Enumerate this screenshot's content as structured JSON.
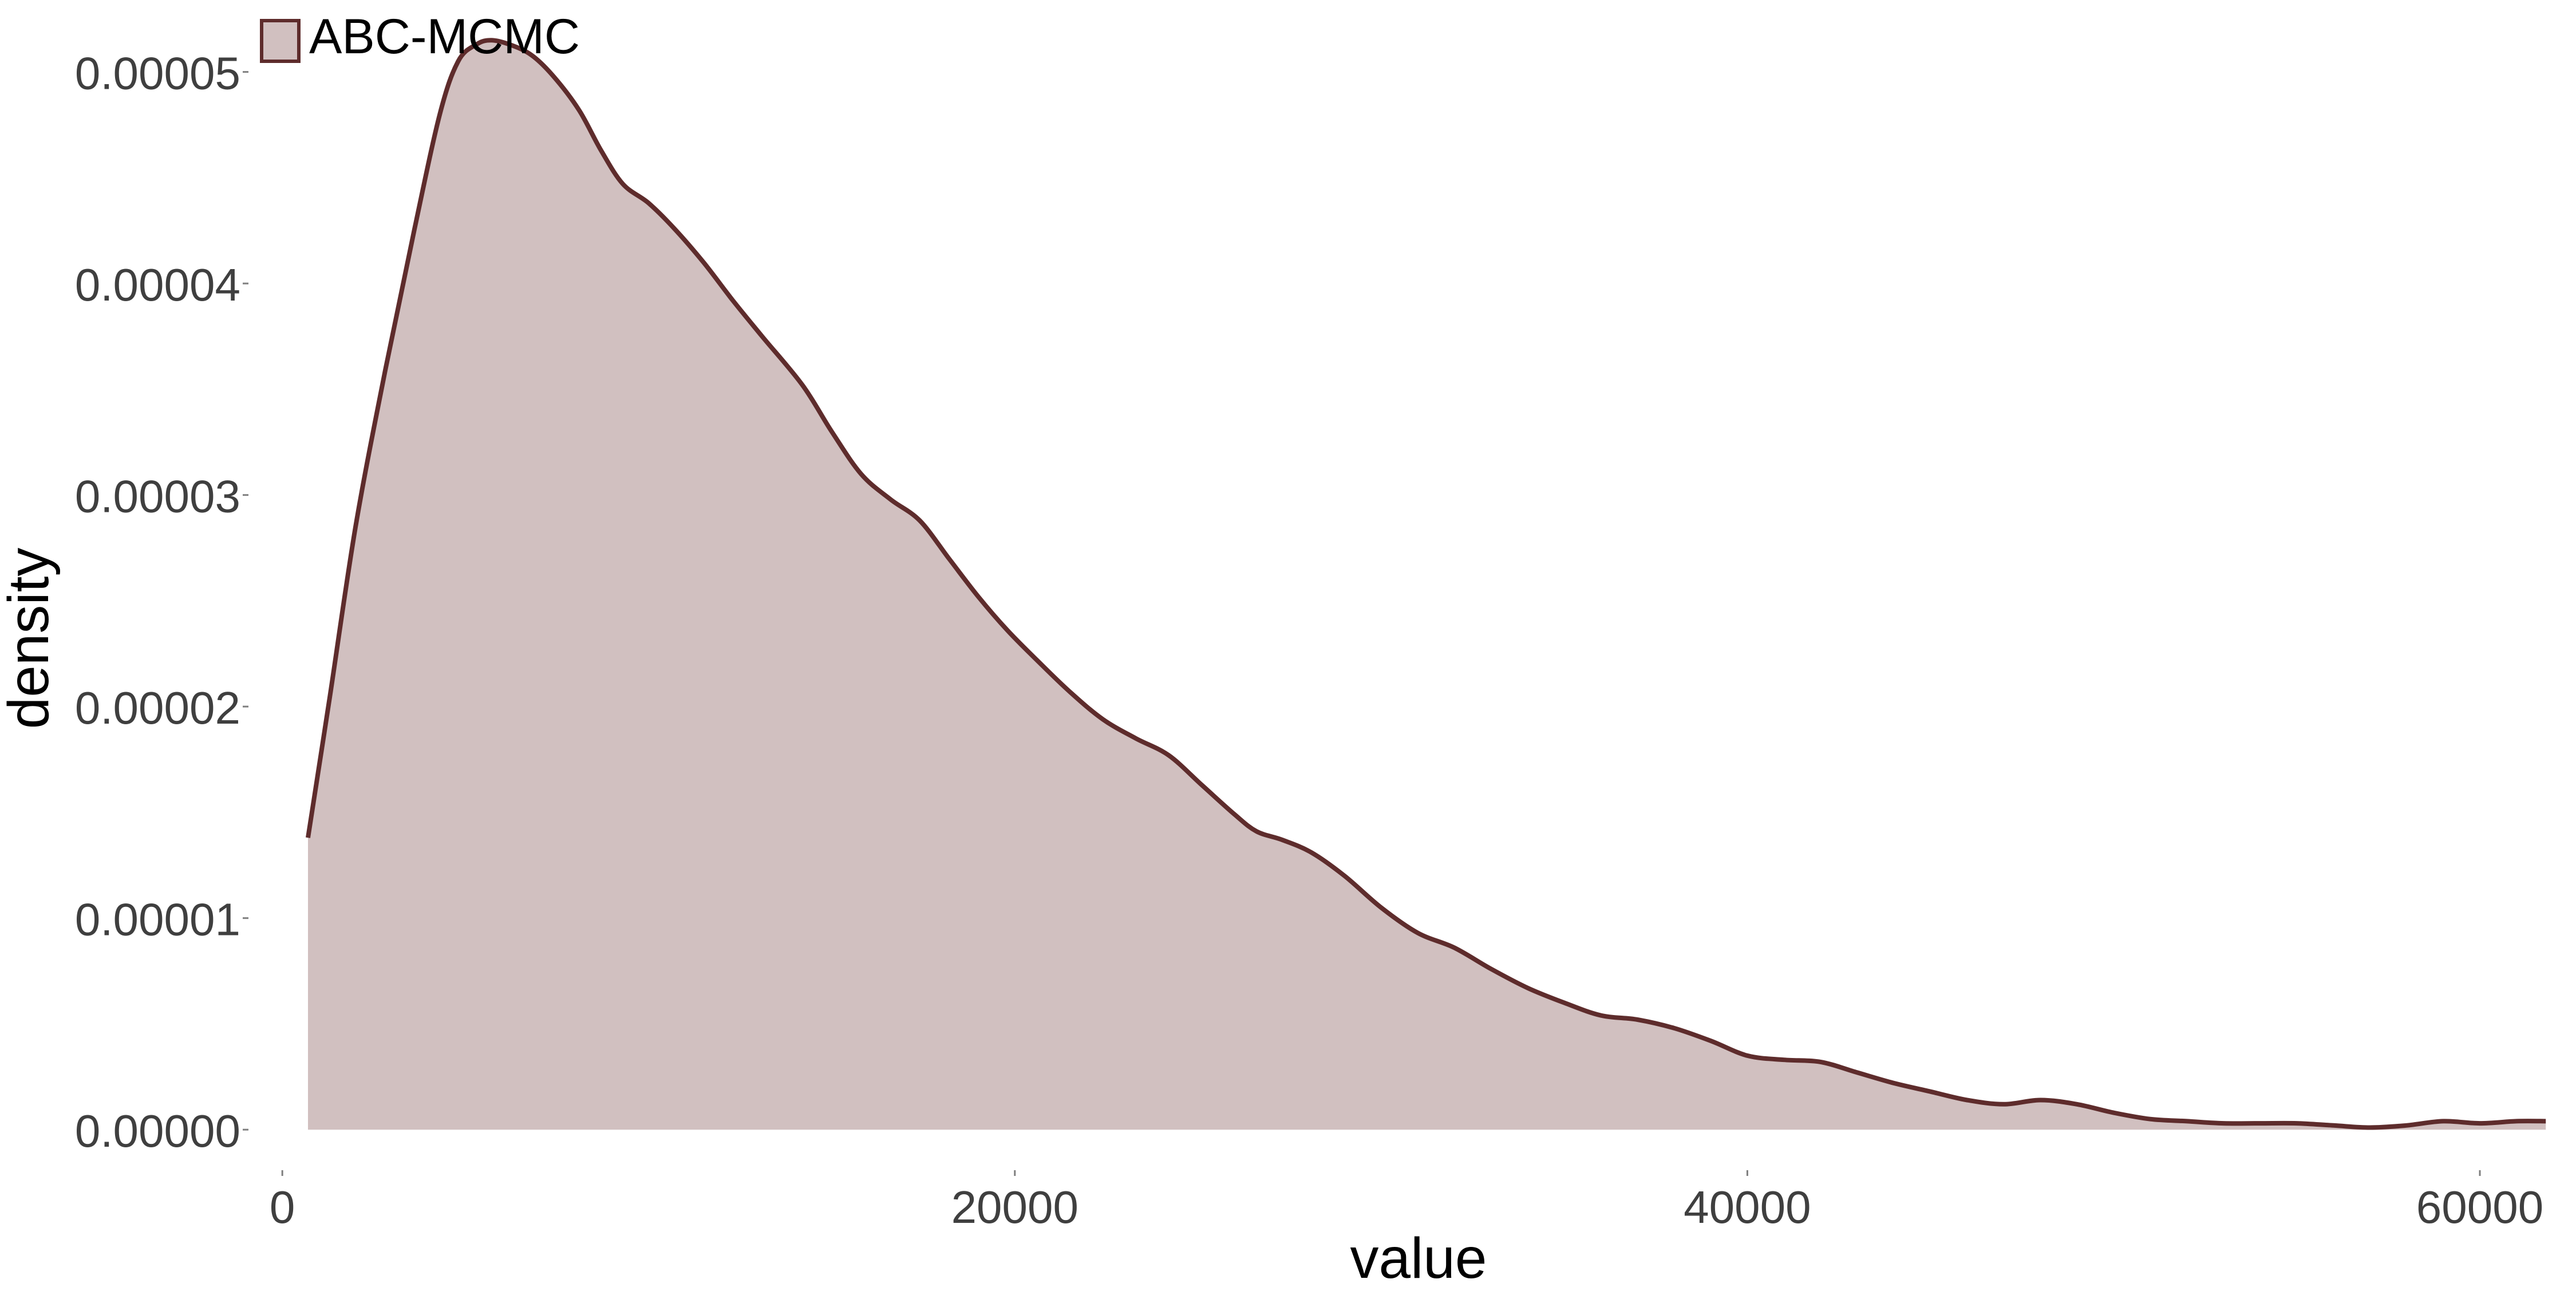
{
  "chart_data": {
    "type": "area",
    "xlabel": "value",
    "ylabel": "density",
    "xlim": [
      -800,
      62000
    ],
    "ylim": [
      -1.7e-06,
      5.34e-05
    ],
    "x_ticks": [
      0,
      20000,
      40000,
      60000
    ],
    "x_tick_labels": [
      "0",
      "20000",
      "40000",
      "60000"
    ],
    "y_ticks": [
      0,
      1e-05,
      2e-05,
      3e-05,
      4e-05,
      5e-05
    ],
    "y_tick_labels": [
      "0.00000",
      "0.00001",
      "0.00002",
      "0.00003",
      "0.00004",
      "0.00005"
    ],
    "grid": false,
    "legend_position": "top-left",
    "series": [
      {
        "name": "ABC-MCMC",
        "x": [
          700,
          1300,
          2000,
          2800,
          3600,
          4300,
          4800,
          5300,
          5700,
          6200,
          6800,
          7400,
          8100,
          8700,
          9300,
          10000,
          10700,
          11500,
          12300,
          13100,
          14200,
          15000,
          15800,
          16600,
          17400,
          18200,
          19000,
          19800,
          20600,
          21500,
          22400,
          23300,
          24200,
          25100,
          26000,
          26600,
          27300,
          28100,
          29000,
          30000,
          31000,
          32000,
          33000,
          34000,
          35000,
          36000,
          37000,
          38000,
          39000,
          40000,
          41000,
          42000,
          43000,
          44000,
          45000,
          46000,
          47000,
          48000,
          49000,
          50000,
          51000,
          52000,
          53000,
          54000,
          55000,
          56000,
          57000,
          58000,
          59000,
          60000,
          61000,
          61800
        ],
        "values": [
          1.38e-05,
          2.05e-05,
          2.85e-05,
          3.58e-05,
          4.25e-05,
          4.8e-05,
          5.05e-05,
          5.13e-05,
          5.15e-05,
          5.13e-05,
          5.08e-05,
          4.98e-05,
          4.82e-05,
          4.63e-05,
          4.47e-05,
          4.38e-05,
          4.26e-05,
          4.1e-05,
          3.92e-05,
          3.75e-05,
          3.52e-05,
          3.3e-05,
          3.1e-05,
          2.98e-05,
          2.88e-05,
          2.7e-05,
          2.52e-05,
          2.36e-05,
          2.22e-05,
          2.07e-05,
          1.94e-05,
          1.85e-05,
          1.77e-05,
          1.63e-05,
          1.49e-05,
          1.41e-05,
          1.37e-05,
          1.31e-05,
          1.2e-05,
          1.05e-05,
          9.3e-06,
          8.6e-06,
          7.6e-06,
          6.7e-06,
          6e-06,
          5.4e-06,
          5.2e-06,
          4.8e-06,
          4.2e-06,
          3.5e-06,
          3.3e-06,
          3.2e-06,
          2.7e-06,
          2.2e-06,
          1.8e-06,
          1.4e-06,
          1.2e-06,
          1.4e-06,
          1.2e-06,
          8e-07,
          5e-07,
          4e-07,
          3e-07,
          3e-07,
          3e-07,
          2e-07,
          1e-07,
          2e-07,
          4e-07,
          3e-07,
          4e-07,
          4e-07
        ]
      }
    ]
  },
  "colors": {
    "line": "#5e2c2c",
    "fill": "#d1c0c0",
    "tick_text": "#3f3f3f",
    "axis_title": "#000000",
    "tick_mark": "#7f7f7f"
  }
}
